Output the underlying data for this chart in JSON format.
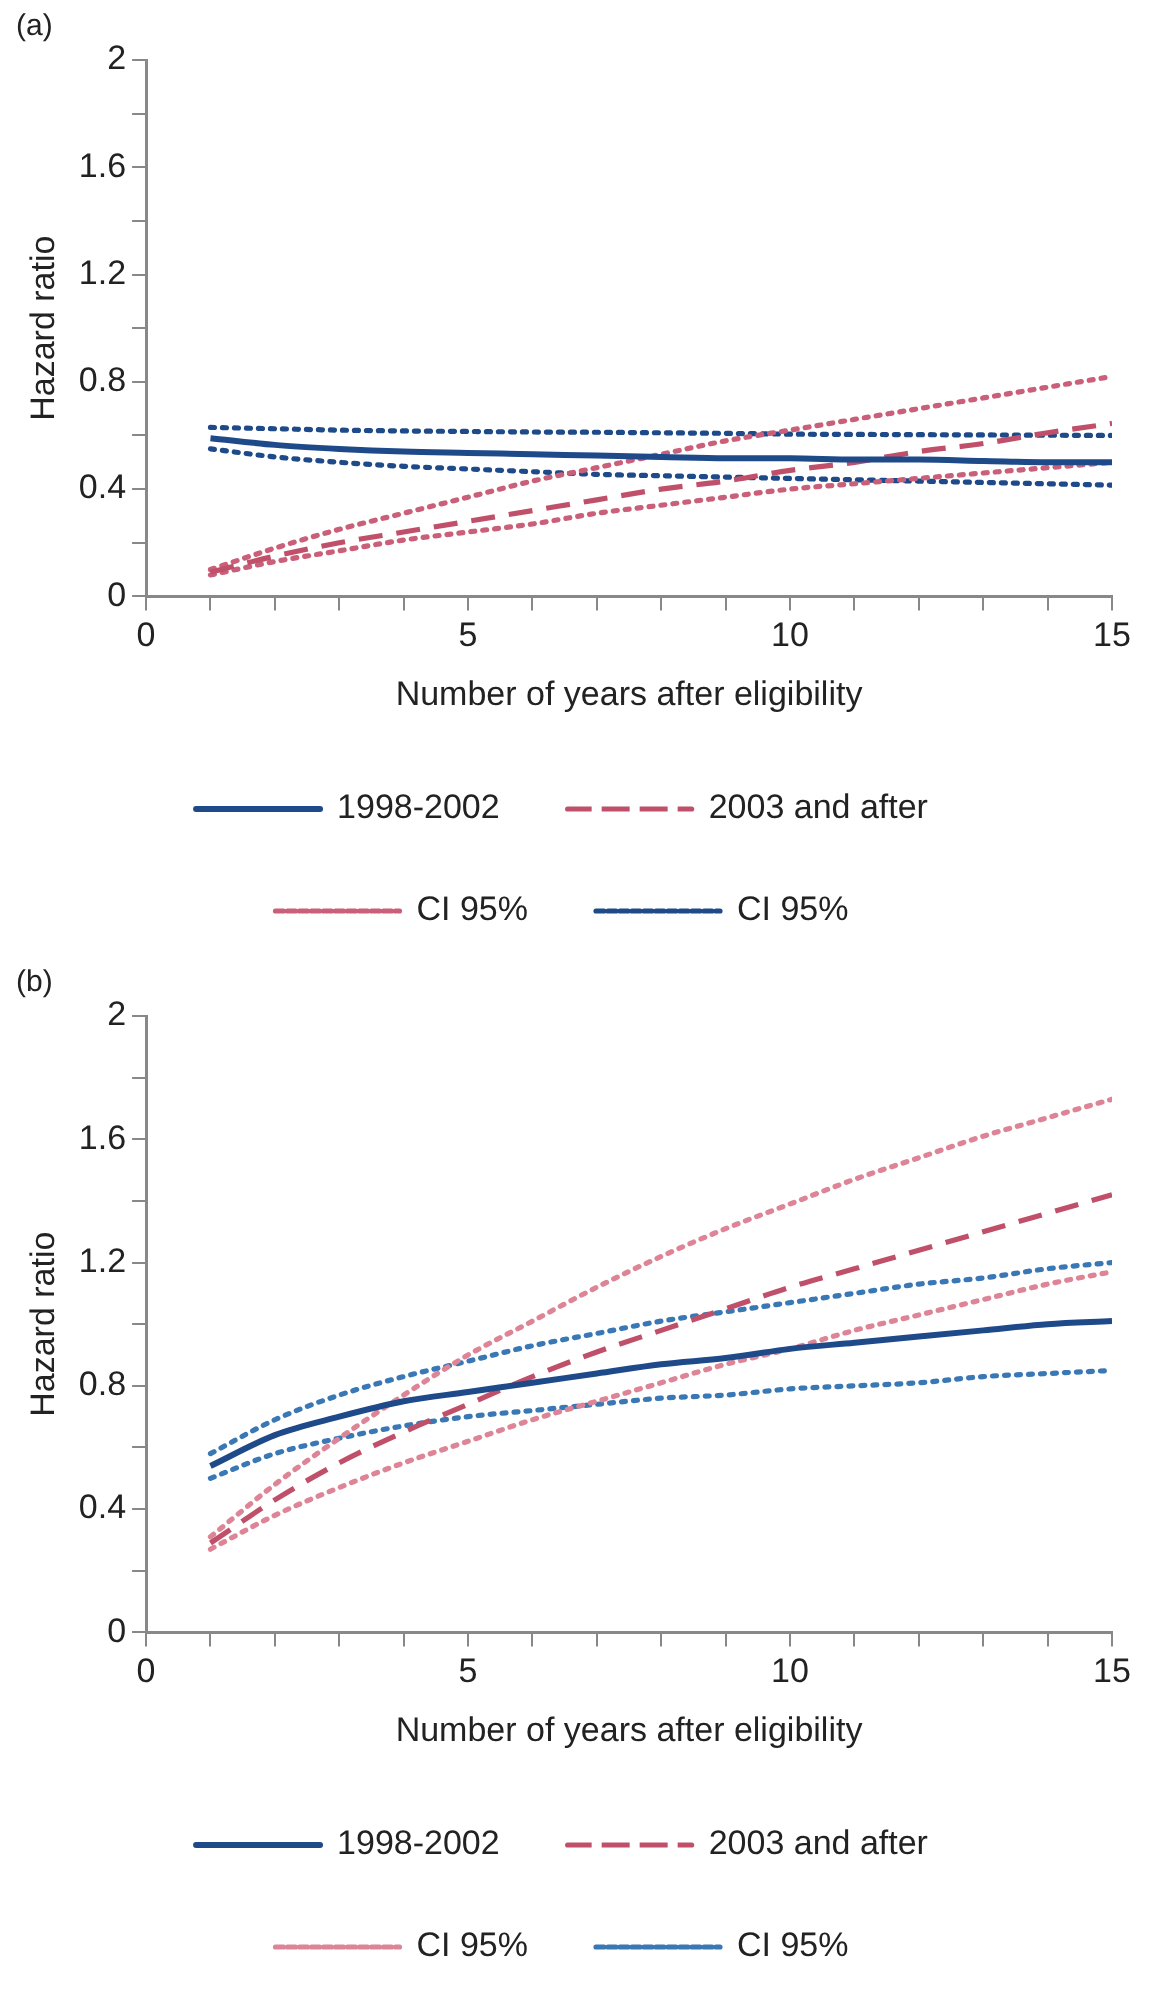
{
  "chart_data": [
    {
      "type": "line",
      "annotations": [
        "(a)"
      ],
      "xlabel": "Number of years after eligibility",
      "ylabel": "Hazard ratio",
      "x": [
        1,
        2,
        3,
        4,
        5,
        6,
        7,
        8,
        9,
        10,
        11,
        12,
        13,
        14,
        15
      ],
      "xlim": [
        0,
        15
      ],
      "xticks": [
        0,
        {
          "value": 1,
          "label": null
        },
        {
          "value": 2,
          "label": null
        },
        {
          "value": 3,
          "label": null
        },
        {
          "value": 4,
          "label": null
        },
        5,
        {
          "value": 6,
          "label": null
        },
        {
          "value": 7,
          "label": null
        },
        {
          "value": 8,
          "label": null
        },
        {
          "value": 9,
          "label": null
        },
        10,
        {
          "value": 11,
          "label": null
        },
        {
          "value": 12,
          "label": null
        },
        {
          "value": 13,
          "label": null
        },
        {
          "value": 14,
          "label": null
        },
        15
      ],
      "ylim": [
        0,
        2
      ],
      "yticks": [
        0,
        {
          "value": 0.2,
          "label": null
        },
        0.4,
        {
          "value": 0.6,
          "label": null
        },
        0.8,
        {
          "value": 1,
          "label": null
        },
        1.2,
        {
          "value": 1.4,
          "label": null
        },
        1.6,
        {
          "value": 1.8,
          "label": null
        },
        2
      ],
      "grid": false,
      "legend": "bottom",
      "marker": "none",
      "series": [
        {
          "name": "1998-2002",
          "color": "#1f4a8a",
          "line_style": "solid",
          "values": [
            0.59,
            0.565,
            0.55,
            0.54,
            0.535,
            0.53,
            0.525,
            0.52,
            0.515,
            0.515,
            0.51,
            0.51,
            0.505,
            0.5,
            0.5
          ]
        },
        {
          "name": "2003 and after",
          "color": "#c0506a",
          "line_style": "dashed",
          "values": [
            0.09,
            0.15,
            0.2,
            0.24,
            0.28,
            0.32,
            0.36,
            0.4,
            0.43,
            0.47,
            0.5,
            0.54,
            0.57,
            0.61,
            0.645
          ]
        },
        {
          "name": "CI 95%",
          "color": "#c95f78",
          "line_style": "dotted",
          "values": [
            0.1,
            0.18,
            0.25,
            0.31,
            0.37,
            0.43,
            0.48,
            0.53,
            0.58,
            0.62,
            0.66,
            0.7,
            0.74,
            0.78,
            0.82
          ]
        },
        {
          "name": "CI 95%",
          "color": "#1f4a8a",
          "line_style": "dotted",
          "values": [
            0.63,
            0.625,
            0.62,
            0.617,
            0.615,
            0.613,
            0.612,
            0.61,
            0.608,
            0.605,
            0.604,
            0.603,
            0.602,
            0.601,
            0.6
          ]
        },
        {
          "color": "#c95f78",
          "line_style": "dotted",
          "values": [
            0.08,
            0.13,
            0.17,
            0.21,
            0.24,
            0.27,
            0.31,
            0.34,
            0.37,
            0.4,
            0.42,
            0.44,
            0.46,
            0.48,
            0.5
          ]
        },
        {
          "color": "#1f4a8a",
          "line_style": "dotted",
          "values": [
            0.55,
            0.52,
            0.5,
            0.485,
            0.475,
            0.465,
            0.455,
            0.45,
            0.445,
            0.44,
            0.435,
            0.43,
            0.425,
            0.42,
            0.415
          ]
        }
      ]
    },
    {
      "type": "line",
      "annotations": [
        "(b)"
      ],
      "xlabel": "Number of years after eligibility",
      "ylabel": "Hazard ratio",
      "x": [
        1,
        2,
        3,
        4,
        5,
        6,
        7,
        8,
        9,
        10,
        11,
        12,
        13,
        14,
        15
      ],
      "xlim": [
        0,
        15
      ],
      "xticks": [
        0,
        {
          "value": 1,
          "label": null
        },
        {
          "value": 2,
          "label": null
        },
        {
          "value": 3,
          "label": null
        },
        {
          "value": 4,
          "label": null
        },
        5,
        {
          "value": 6,
          "label": null
        },
        {
          "value": 7,
          "label": null
        },
        {
          "value": 8,
          "label": null
        },
        {
          "value": 9,
          "label": null
        },
        10,
        {
          "value": 11,
          "label": null
        },
        {
          "value": 12,
          "label": null
        },
        {
          "value": 13,
          "label": null
        },
        {
          "value": 14,
          "label": null
        },
        15
      ],
      "ylim": [
        0,
        2
      ],
      "yticks": [
        0,
        {
          "value": 0.2,
          "label": null
        },
        0.4,
        {
          "value": 0.6,
          "label": null
        },
        0.8,
        {
          "value": 1,
          "label": null
        },
        1.2,
        {
          "value": 1.4,
          "label": null
        },
        1.6,
        {
          "value": 1.8,
          "label": null
        },
        2
      ],
      "grid": false,
      "legend": "bottom",
      "marker": "none",
      "series": [
        {
          "name": "1998-2002",
          "color": "#1f4a8a",
          "line_style": "solid",
          "values": [
            0.54,
            0.64,
            0.7,
            0.75,
            0.78,
            0.81,
            0.84,
            0.87,
            0.89,
            0.92,
            0.94,
            0.96,
            0.98,
            1.0,
            1.01
          ]
        },
        {
          "name": "2003 and after",
          "color": "#c0506a",
          "line_style": "dashed",
          "values": [
            0.29,
            0.43,
            0.55,
            0.65,
            0.74,
            0.83,
            0.91,
            0.98,
            1.05,
            1.12,
            1.18,
            1.24,
            1.3,
            1.36,
            1.42
          ]
        },
        {
          "name": "CI 95%",
          "color": "#dd8596",
          "line_style": "dotted",
          "values": [
            0.31,
            0.48,
            0.63,
            0.77,
            0.9,
            1.01,
            1.12,
            1.22,
            1.31,
            1.39,
            1.47,
            1.54,
            1.61,
            1.67,
            1.73
          ]
        },
        {
          "name": "CI 95%",
          "color": "#3a78b5",
          "line_style": "dotted",
          "values": [
            0.58,
            0.69,
            0.77,
            0.83,
            0.88,
            0.93,
            0.97,
            1.01,
            1.04,
            1.07,
            1.1,
            1.13,
            1.15,
            1.18,
            1.2
          ]
        },
        {
          "color": "#dd8596",
          "line_style": "dotted",
          "values": [
            0.27,
            0.38,
            0.47,
            0.55,
            0.62,
            0.69,
            0.75,
            0.81,
            0.87,
            0.92,
            0.98,
            1.03,
            1.08,
            1.13,
            1.17
          ]
        },
        {
          "color": "#3a78b5",
          "line_style": "dotted",
          "values": [
            0.5,
            0.58,
            0.63,
            0.67,
            0.7,
            0.72,
            0.74,
            0.76,
            0.77,
            0.79,
            0.8,
            0.81,
            0.83,
            0.84,
            0.85
          ]
        }
      ]
    }
  ]
}
